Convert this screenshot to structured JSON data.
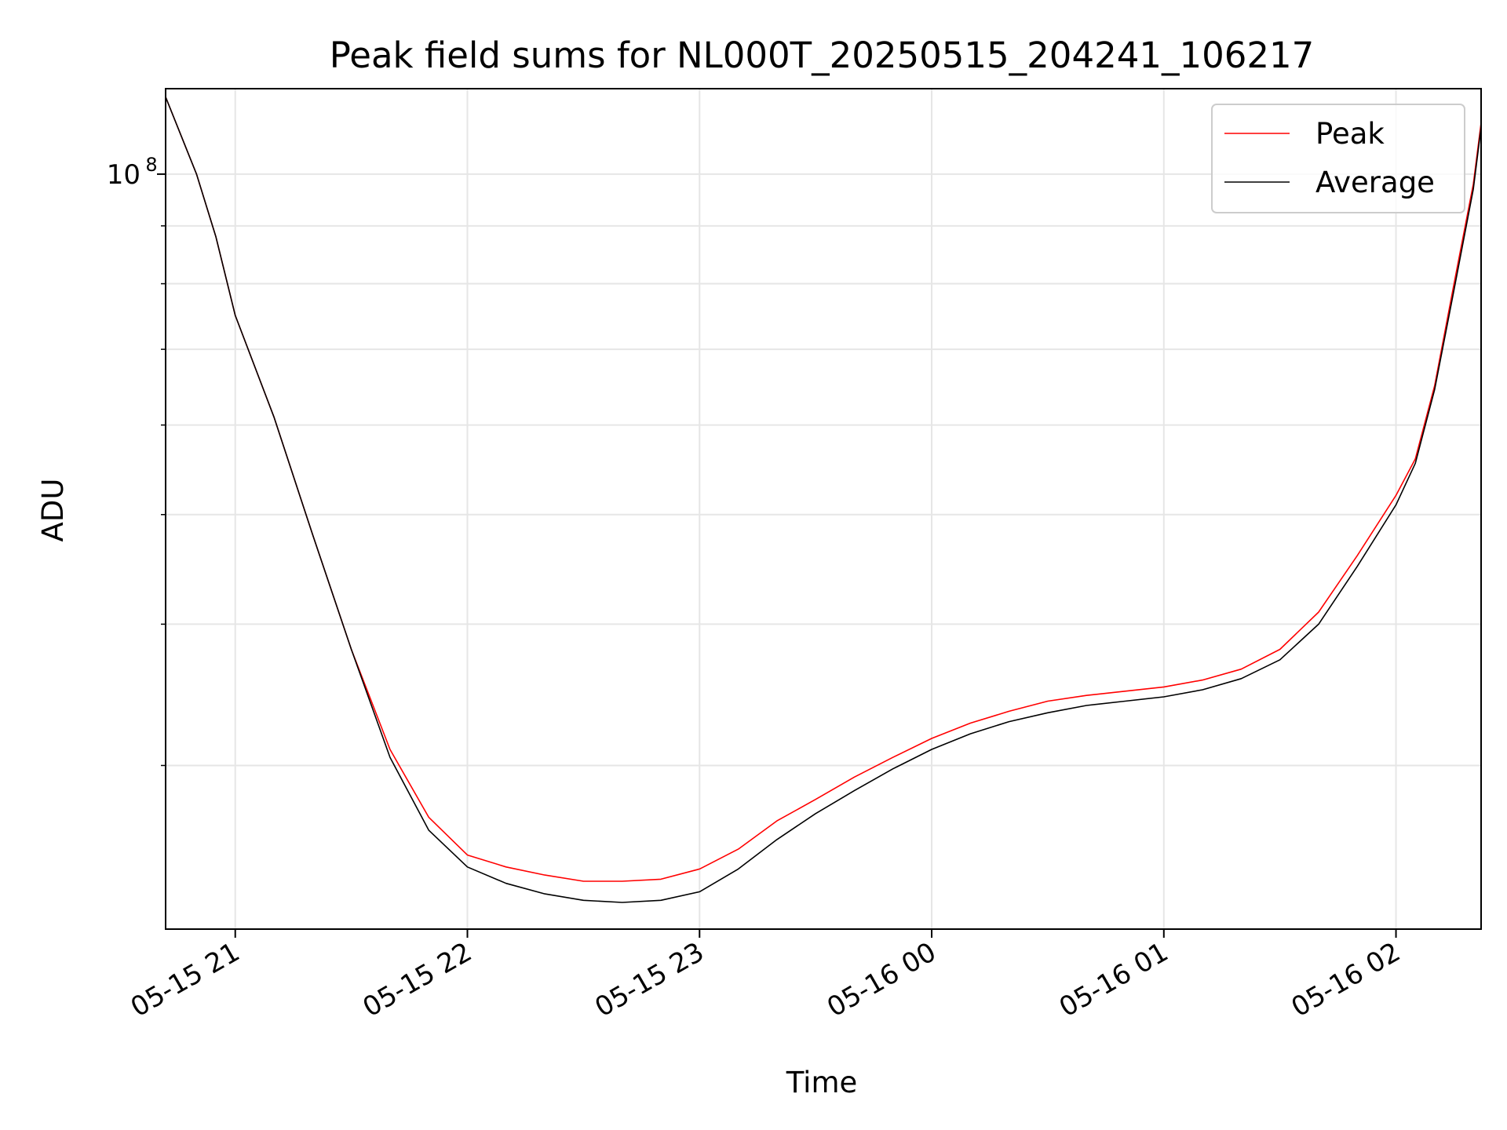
{
  "chart_data": {
    "type": "line",
    "title": "Peak field sums for NL000T_20250515_204241_106217",
    "xlabel": "Time",
    "ylabel": "ADU",
    "y_scale": "log",
    "grid": true,
    "legend_position": "top-right",
    "xlim": [
      "2025-05-15 20:42",
      "2025-05-16 02:22"
    ],
    "ylim": [
      21500000,
      119000000
    ],
    "x_ticks": [
      {
        "value": "2025-05-15 21:00",
        "label": "05-15 21"
      },
      {
        "value": "2025-05-15 22:00",
        "label": "05-15 22"
      },
      {
        "value": "2025-05-15 23:00",
        "label": "05-15 23"
      },
      {
        "value": "2025-05-16 00:00",
        "label": "05-16 00"
      },
      {
        "value": "2025-05-16 01:00",
        "label": "05-16 01"
      },
      {
        "value": "2025-05-16 02:00",
        "label": "05-16 02"
      }
    ],
    "y_major_ticks": [
      {
        "value": 100000000,
        "label_base": "10",
        "label_exp": "8"
      }
    ],
    "y_minor_ticks": [
      30000000,
      40000000,
      50000000,
      60000000,
      70000000,
      80000000,
      90000000
    ],
    "series": [
      {
        "name": "Peak",
        "color": "#ff0000",
        "x": [
          "2025-05-15 20:42",
          "2025-05-15 20:50",
          "2025-05-15 20:55",
          "2025-05-15 21:00",
          "2025-05-15 21:10",
          "2025-05-15 21:20",
          "2025-05-15 21:30",
          "2025-05-15 21:40",
          "2025-05-15 21:50",
          "2025-05-15 22:00",
          "2025-05-15 22:10",
          "2025-05-15 22:20",
          "2025-05-15 22:30",
          "2025-05-15 22:40",
          "2025-05-15 22:50",
          "2025-05-15 23:00",
          "2025-05-15 23:10",
          "2025-05-15 23:20",
          "2025-05-15 23:30",
          "2025-05-15 23:40",
          "2025-05-15 23:50",
          "2025-05-16 00:00",
          "2025-05-16 00:10",
          "2025-05-16 00:20",
          "2025-05-16 00:30",
          "2025-05-16 00:40",
          "2025-05-16 00:50",
          "2025-05-16 01:00",
          "2025-05-16 01:10",
          "2025-05-16 01:20",
          "2025-05-16 01:30",
          "2025-05-16 01:40",
          "2025-05-16 01:50",
          "2025-05-16 02:00",
          "2025-05-16 02:05",
          "2025-05-16 02:10",
          "2025-05-16 02:15",
          "2025-05-16 02:20",
          "2025-05-16 02:22"
        ],
        "y": [
          117000000,
          100000000,
          88000000,
          75000000,
          61000000,
          48000000,
          38000000,
          31000000,
          27000000,
          25000000,
          24400000,
          24000000,
          23700000,
          23700000,
          23800000,
          24300000,
          25300000,
          26800000,
          28000000,
          29300000,
          30500000,
          31700000,
          32700000,
          33500000,
          34200000,
          34600000,
          34900000,
          35200000,
          35700000,
          36500000,
          38000000,
          41000000,
          46000000,
          52000000,
          56000000,
          65000000,
          80000000,
          98000000,
          111000000
        ]
      },
      {
        "name": "Average",
        "color": "#000000",
        "x": [
          "2025-05-15 20:42",
          "2025-05-15 20:50",
          "2025-05-15 20:55",
          "2025-05-15 21:00",
          "2025-05-15 21:10",
          "2025-05-15 21:20",
          "2025-05-15 21:30",
          "2025-05-15 21:40",
          "2025-05-15 21:50",
          "2025-05-15 22:00",
          "2025-05-15 22:10",
          "2025-05-15 22:20",
          "2025-05-15 22:30",
          "2025-05-15 22:40",
          "2025-05-15 22:50",
          "2025-05-15 23:00",
          "2025-05-15 23:10",
          "2025-05-15 23:20",
          "2025-05-15 23:30",
          "2025-05-15 23:40",
          "2025-05-15 23:50",
          "2025-05-16 00:00",
          "2025-05-16 00:10",
          "2025-05-16 00:20",
          "2025-05-16 00:30",
          "2025-05-16 00:40",
          "2025-05-16 00:50",
          "2025-05-16 01:00",
          "2025-05-16 01:10",
          "2025-05-16 01:20",
          "2025-05-16 01:30",
          "2025-05-16 01:40",
          "2025-05-16 01:50",
          "2025-05-16 02:00",
          "2025-05-16 02:05",
          "2025-05-16 02:10",
          "2025-05-16 02:15",
          "2025-05-16 02:20",
          "2025-05-16 02:22"
        ],
        "y": [
          117000000,
          100000000,
          88000000,
          75000000,
          61000000,
          48000000,
          38000000,
          30500000,
          26300000,
          24400000,
          23600000,
          23100000,
          22800000,
          22700000,
          22800000,
          23200000,
          24300000,
          25800000,
          27200000,
          28500000,
          29800000,
          31000000,
          32000000,
          32800000,
          33400000,
          33900000,
          34200000,
          34500000,
          35000000,
          35800000,
          37200000,
          40000000,
          45000000,
          51000000,
          55500000,
          64500000,
          79000000,
          97000000,
          110000000
        ]
      }
    ]
  }
}
